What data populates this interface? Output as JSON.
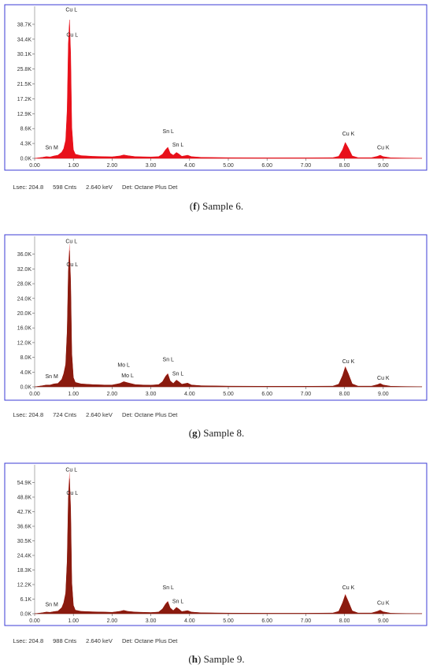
{
  "chart_data": [
    {
      "type": "area",
      "panel_label": "f",
      "caption": "Sample 6.",
      "status": {
        "lsec": "Lsec: 204.8",
        "cnts": "598 Cnts",
        "kev": "2.640 keV",
        "det": "Det: Octane Plus Det"
      },
      "xlim": [
        0,
        10
      ],
      "x_ticks": [
        "0.00",
        "1.00",
        "2.00",
        "3.00",
        "4.00",
        "5.00",
        "6.00",
        "7.00",
        "8.00",
        "9.00"
      ],
      "ylim": [
        0,
        43000
      ],
      "y_ticks": [
        {
          "value": 0,
          "label": "0.0K"
        },
        {
          "value": 4300,
          "label": "4.3K"
        },
        {
          "value": 8600,
          "label": "8.6K"
        },
        {
          "value": 12900,
          "label": "12.9K"
        },
        {
          "value": 17200,
          "label": "17.2K"
        },
        {
          "value": 21500,
          "label": "21.5K"
        },
        {
          "value": 25800,
          "label": "25.8K"
        },
        {
          "value": 30100,
          "label": "30.1K"
        },
        {
          "value": 34400,
          "label": "34.4K"
        },
        {
          "value": 38700,
          "label": "38.7K"
        }
      ],
      "fill_color": "#e8101a",
      "overlay_color": null,
      "spectrum": [
        [
          0.0,
          0
        ],
        [
          0.1,
          150
        ],
        [
          0.2,
          300
        ],
        [
          0.3,
          500
        ],
        [
          0.4,
          400
        ],
        [
          0.5,
          700
        ],
        [
          0.6,
          900
        ],
        [
          0.7,
          1800
        ],
        [
          0.75,
          2800
        ],
        [
          0.8,
          5200
        ],
        [
          0.84,
          14000
        ],
        [
          0.87,
          33000
        ],
        [
          0.9,
          40000
        ],
        [
          0.93,
          30000
        ],
        [
          0.96,
          9000
        ],
        [
          1.0,
          2500
        ],
        [
          1.05,
          1200
        ],
        [
          1.2,
          800
        ],
        [
          1.5,
          600
        ],
        [
          1.8,
          500
        ],
        [
          2.0,
          450
        ],
        [
          2.2,
          700
        ],
        [
          2.3,
          1000
        ],
        [
          2.4,
          800
        ],
        [
          2.6,
          500
        ],
        [
          2.8,
          450
        ],
        [
          3.0,
          400
        ],
        [
          3.2,
          500
        ],
        [
          3.3,
          1200
        ],
        [
          3.38,
          2500
        ],
        [
          3.44,
          3200
        ],
        [
          3.5,
          1500
        ],
        [
          3.58,
          900
        ],
        [
          3.66,
          1700
        ],
        [
          3.72,
          1300
        ],
        [
          3.8,
          600
        ],
        [
          3.95,
          900
        ],
        [
          4.05,
          500
        ],
        [
          4.3,
          300
        ],
        [
          5.0,
          200
        ],
        [
          6.0,
          150
        ],
        [
          7.0,
          150
        ],
        [
          7.7,
          200
        ],
        [
          7.85,
          600
        ],
        [
          7.95,
          2500
        ],
        [
          8.02,
          4600
        ],
        [
          8.1,
          3000
        ],
        [
          8.2,
          700
        ],
        [
          8.35,
          200
        ],
        [
          8.7,
          200
        ],
        [
          8.85,
          600
        ],
        [
          8.92,
          900
        ],
        [
          9.0,
          500
        ],
        [
          9.2,
          150
        ],
        [
          9.6,
          80
        ],
        [
          10.0,
          50
        ]
      ],
      "peak_labels": [
        {
          "text": "Cu L",
          "x": 0.95,
          "y": 42400
        },
        {
          "text": "Cu L",
          "x": 0.97,
          "y": 35200
        },
        {
          "text": "Sn M",
          "x": 0.44,
          "y": 2600
        },
        {
          "text": "Sn L",
          "x": 3.45,
          "y": 7300
        },
        {
          "text": "Sn L",
          "x": 3.7,
          "y": 3400
        },
        {
          "text": "Cu K",
          "x": 8.1,
          "y": 6600
        },
        {
          "text": "Cu K",
          "x": 9.0,
          "y": 2600
        }
      ]
    },
    {
      "type": "area",
      "panel_label": "g",
      "caption": "Sample 8.",
      "status": {
        "lsec": "Lsec: 204.8",
        "cnts": "724 Cnts",
        "kev": "2.640 keV",
        "det": "Det: Octane Plus Det"
      },
      "xlim": [
        0,
        10
      ],
      "x_ticks": [
        "0.00",
        "1.00",
        "2.00",
        "3.00",
        "4.00",
        "5.00",
        "6.00",
        "7.00",
        "8.00",
        "9.00"
      ],
      "ylim": [
        0,
        40000
      ],
      "y_ticks": [
        {
          "value": 0,
          "label": "0.0K"
        },
        {
          "value": 4000,
          "label": "4.0K"
        },
        {
          "value": 8000,
          "label": "8.0K"
        },
        {
          "value": 12000,
          "label": "12.0K"
        },
        {
          "value": 16000,
          "label": "16.0K"
        },
        {
          "value": 20000,
          "label": "20.0K"
        },
        {
          "value": 24000,
          "label": "24.0K"
        },
        {
          "value": 28000,
          "label": "28.0K"
        },
        {
          "value": 32000,
          "label": "32.0K"
        },
        {
          "value": 36000,
          "label": "36.0K"
        }
      ],
      "fill_color": "#8a1a0e",
      "overlay_color": "#e83535",
      "spectrum": [
        [
          0.0,
          0
        ],
        [
          0.1,
          150
        ],
        [
          0.2,
          300
        ],
        [
          0.3,
          500
        ],
        [
          0.4,
          500
        ],
        [
          0.5,
          800
        ],
        [
          0.6,
          900
        ],
        [
          0.7,
          2000
        ],
        [
          0.75,
          3500
        ],
        [
          0.8,
          6000
        ],
        [
          0.84,
          15000
        ],
        [
          0.87,
          31000
        ],
        [
          0.9,
          37000
        ],
        [
          0.93,
          28000
        ],
        [
          0.96,
          9000
        ],
        [
          1.0,
          2500
        ],
        [
          1.05,
          1200
        ],
        [
          1.2,
          800
        ],
        [
          1.5,
          600
        ],
        [
          1.8,
          500
        ],
        [
          2.0,
          500
        ],
        [
          2.2,
          900
        ],
        [
          2.3,
          1400
        ],
        [
          2.4,
          1100
        ],
        [
          2.6,
          600
        ],
        [
          2.8,
          500
        ],
        [
          3.0,
          450
        ],
        [
          3.2,
          600
        ],
        [
          3.3,
          1400
        ],
        [
          3.38,
          2800
        ],
        [
          3.44,
          3500
        ],
        [
          3.5,
          1600
        ],
        [
          3.58,
          900
        ],
        [
          3.66,
          1800
        ],
        [
          3.72,
          1400
        ],
        [
          3.8,
          700
        ],
        [
          3.95,
          1000
        ],
        [
          4.05,
          500
        ],
        [
          4.3,
          300
        ],
        [
          5.0,
          200
        ],
        [
          6.0,
          150
        ],
        [
          7.0,
          150
        ],
        [
          7.7,
          200
        ],
        [
          7.85,
          700
        ],
        [
          7.95,
          3000
        ],
        [
          8.02,
          5300
        ],
        [
          8.1,
          3500
        ],
        [
          8.2,
          800
        ],
        [
          8.35,
          200
        ],
        [
          8.7,
          200
        ],
        [
          8.85,
          600
        ],
        [
          8.92,
          900
        ],
        [
          9.0,
          500
        ],
        [
          9.2,
          150
        ],
        [
          9.6,
          80
        ],
        [
          10.0,
          50
        ]
      ],
      "peak_labels": [
        {
          "text": "Cu L",
          "x": 0.95,
          "y": 39000
        },
        {
          "text": "Cu L",
          "x": 0.97,
          "y": 32700
        },
        {
          "text": "Sn M",
          "x": 0.44,
          "y": 2400
        },
        {
          "text": "Mo L",
          "x": 2.3,
          "y": 5500
        },
        {
          "text": "Mo L",
          "x": 2.4,
          "y": 2600
        },
        {
          "text": "Sn L",
          "x": 3.45,
          "y": 7000
        },
        {
          "text": "Sn L",
          "x": 3.7,
          "y": 3100
        },
        {
          "text": "Cu K",
          "x": 8.1,
          "y": 6400
        },
        {
          "text": "Cu K",
          "x": 9.0,
          "y": 1900
        }
      ]
    },
    {
      "type": "area",
      "panel_label": "h",
      "caption": "Sample 9.",
      "status": {
        "lsec": "Lsec: 204.8",
        "cnts": "988 Cnts",
        "kev": "2.640 keV",
        "det": "Det: Octane Plus Det"
      },
      "xlim": [
        0,
        10
      ],
      "x_ticks": [
        "0.00",
        "1.00",
        "2.00",
        "3.00",
        "4.00",
        "5.00",
        "6.00",
        "7.00",
        "8.00",
        "9.00"
      ],
      "ylim": [
        0,
        61000
      ],
      "y_ticks": [
        {
          "value": 0,
          "label": "0.0K"
        },
        {
          "value": 6100,
          "label": "6.1K"
        },
        {
          "value": 12200,
          "label": "12.2K"
        },
        {
          "value": 18300,
          "label": "18.3K"
        },
        {
          "value": 24400,
          "label": "24.4K"
        },
        {
          "value": 30500,
          "label": "30.5K"
        },
        {
          "value": 36600,
          "label": "36.6K"
        },
        {
          "value": 42700,
          "label": "42.7K"
        },
        {
          "value": 48800,
          "label": "48.8K"
        },
        {
          "value": 54900,
          "label": "54.9K"
        }
      ],
      "fill_color": "#8a1a0e",
      "overlay_color": "#e83535",
      "spectrum": [
        [
          0.0,
          0
        ],
        [
          0.1,
          200
        ],
        [
          0.2,
          400
        ],
        [
          0.3,
          700
        ],
        [
          0.4,
          600
        ],
        [
          0.5,
          900
        ],
        [
          0.6,
          1100
        ],
        [
          0.7,
          2500
        ],
        [
          0.75,
          4500
        ],
        [
          0.8,
          8500
        ],
        [
          0.84,
          22000
        ],
        [
          0.87,
          48000
        ],
        [
          0.9,
          56500
        ],
        [
          0.93,
          43000
        ],
        [
          0.96,
          13000
        ],
        [
          1.0,
          3500
        ],
        [
          1.05,
          1500
        ],
        [
          1.2,
          1000
        ],
        [
          1.5,
          800
        ],
        [
          1.8,
          700
        ],
        [
          2.0,
          600
        ],
        [
          2.2,
          1000
        ],
        [
          2.3,
          1400
        ],
        [
          2.4,
          1000
        ],
        [
          2.6,
          700
        ],
        [
          2.8,
          600
        ],
        [
          3.0,
          500
        ],
        [
          3.2,
          700
        ],
        [
          3.3,
          2000
        ],
        [
          3.38,
          4000
        ],
        [
          3.44,
          5000
        ],
        [
          3.5,
          2400
        ],
        [
          3.58,
          1300
        ],
        [
          3.66,
          2600
        ],
        [
          3.72,
          2000
        ],
        [
          3.8,
          900
        ],
        [
          3.95,
          1300
        ],
        [
          4.05,
          700
        ],
        [
          4.3,
          400
        ],
        [
          5.0,
          250
        ],
        [
          6.0,
          200
        ],
        [
          7.0,
          200
        ],
        [
          7.7,
          300
        ],
        [
          7.85,
          1000
        ],
        [
          7.95,
          4500
        ],
        [
          8.02,
          7800
        ],
        [
          8.1,
          5000
        ],
        [
          8.2,
          1200
        ],
        [
          8.35,
          300
        ],
        [
          8.7,
          300
        ],
        [
          8.85,
          1000
        ],
        [
          8.92,
          1500
        ],
        [
          9.0,
          800
        ],
        [
          9.2,
          200
        ],
        [
          9.6,
          100
        ],
        [
          10.0,
          60
        ]
      ],
      "peak_labels": [
        {
          "text": "Cu L",
          "x": 0.95,
          "y": 59500
        },
        {
          "text": "Cu L",
          "x": 0.97,
          "y": 49800
        },
        {
          "text": "Sn M",
          "x": 0.44,
          "y": 3200
        },
        {
          "text": "Sn L",
          "x": 3.45,
          "y": 10200
        },
        {
          "text": "Sn L",
          "x": 3.7,
          "y": 4500
        },
        {
          "text": "Cu K",
          "x": 8.1,
          "y": 10200
        },
        {
          "text": "Cu K",
          "x": 9.0,
          "y": 3800
        }
      ]
    }
  ]
}
